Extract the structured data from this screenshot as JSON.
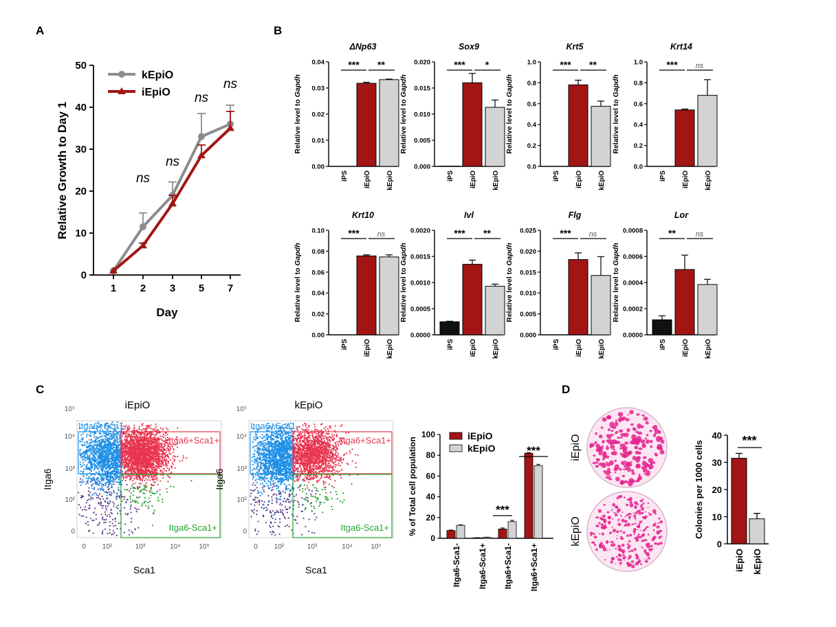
{
  "panel_labels": {
    "a": "A",
    "b": "B",
    "c": "C",
    "d": "D"
  },
  "colors": {
    "red": "#A31515",
    "gray_bar": "#D3D3D3",
    "gray_line": "#8C8C8C",
    "black_bar": "#111111",
    "pink": "#E4238E",
    "blue_gate": "#1E8FE6",
    "red_gate": "#E8354F",
    "green_gate": "#1FA52B",
    "purple": "#5B3C8A"
  },
  "chart_data": [
    {
      "id": "A",
      "type": "line",
      "xlabel": "Day",
      "ylabel": "Relative Growth to  Day 1",
      "categories": [
        "1",
        "2",
        "3",
        "5",
        "7"
      ],
      "ylim": [
        0,
        50
      ],
      "yticks": [
        "0",
        "10",
        "20",
        "30",
        "40",
        "50"
      ],
      "series": [
        {
          "name": "kEpiO",
          "values": [
            1,
            11.5,
            19,
            33,
            36
          ],
          "err": [
            0.2,
            3.3,
            3.2,
            5.5,
            4.5
          ]
        },
        {
          "name": "iEpiO",
          "values": [
            1,
            7,
            17,
            28.5,
            35
          ],
          "err": [
            0.2,
            0.6,
            2,
            2.5,
            4
          ]
        }
      ],
      "annotations": [
        "ns",
        "ns",
        "ns",
        "ns"
      ]
    },
    {
      "id": "B",
      "type": "bar",
      "ylabel": "Relative level to Gapdh",
      "categories": [
        "iPS",
        "iEpiO",
        "kEpiO"
      ],
      "panels": [
        {
          "title": "ΔNp63",
          "yticks": [
            "0.00",
            "0.01",
            "0.02",
            "0.03",
            "0.04"
          ],
          "ymax": 0.04,
          "values": [
            0,
            0.0318,
            0.0332
          ],
          "err": [
            0,
            0.0004,
            0.0002
          ],
          "sig": [
            "***",
            "**"
          ]
        },
        {
          "title": "Sox9",
          "yticks": [
            "0.000",
            "0.005",
            "0.010",
            "0.015",
            "0.020"
          ],
          "ymax": 0.02,
          "values": [
            5e-05,
            0.016,
            0.0113
          ],
          "err": [
            0,
            0.0018,
            0.0014
          ],
          "sig": [
            "***",
            "*"
          ]
        },
        {
          "title": "Krt5",
          "yticks": [
            "0.0",
            "0.2",
            "0.4",
            "0.6",
            "0.8",
            "1.0"
          ],
          "ymax": 1.0,
          "values": [
            0,
            0.78,
            0.575
          ],
          "err": [
            0,
            0.045,
            0.05
          ],
          "sig": [
            "***",
            "**"
          ]
        },
        {
          "title": "Krt14",
          "yticks": [
            "0.0",
            "0.2",
            "0.4",
            "0.6",
            "0.8",
            "1.0"
          ],
          "ymax": 1.0,
          "values": [
            0,
            0.54,
            0.68
          ],
          "err": [
            0,
            0.008,
            0.15
          ],
          "sig": [
            "***",
            "ns"
          ]
        },
        {
          "title": "Krt10",
          "yticks": [
            "0.00",
            "0.02",
            "0.04",
            "0.06",
            "0.08",
            "0.10"
          ],
          "ymax": 0.1,
          "values": [
            0,
            0.0755,
            0.0745
          ],
          "err": [
            0,
            0.001,
            0.002
          ],
          "sig": [
            "***",
            "ns"
          ]
        },
        {
          "title": "Ivl",
          "yticks": [
            "0.0000",
            "0.0005",
            "0.0010",
            "0.0015",
            "0.0020"
          ],
          "ymax": 0.002,
          "values": [
            0.00025,
            0.00135,
            0.00093
          ],
          "err": [
            1e-05,
            8e-05,
            4e-05
          ],
          "sig": [
            "***",
            "**"
          ]
        },
        {
          "title": "Flg",
          "yticks": [
            "0.000",
            "0.005",
            "0.010",
            "0.015",
            "0.020",
            "0.025"
          ],
          "ymax": 0.025,
          "values": [
            0,
            0.018,
            0.0142
          ],
          "err": [
            0,
            0.0016,
            0.0045
          ],
          "sig": [
            "***",
            "ns"
          ]
        },
        {
          "title": "Lor",
          "yticks": [
            "0.0000",
            "0.0002",
            "0.0004",
            "0.0006",
            "0.0008"
          ],
          "ymax": 0.0008,
          "values": [
            0.000115,
            0.0005,
            0.000385
          ],
          "err": [
            3e-05,
            0.00011,
            4e-05
          ],
          "sig": [
            "**",
            "ns"
          ]
        }
      ]
    },
    {
      "id": "C-flow",
      "type": "scatter",
      "plots": [
        {
          "title": "iEpiO",
          "n_blue": 1700,
          "n_red": 2600
        },
        {
          "title": "kEpiO",
          "n_blue": 1900,
          "n_red": 1700
        }
      ],
      "xlabel": "Sca1",
      "ylabel": "Itga6",
      "gates": [
        "Itga6+Sca1-",
        "Itga6+Sca1+",
        "Itga6-Sca1+"
      ],
      "xticks": [
        "0",
        "10²",
        "10³",
        "10⁴",
        "10⁵"
      ],
      "yticks": [
        "0",
        "10²",
        "10³",
        "10⁴",
        "10⁵"
      ]
    },
    {
      "id": "C-bar",
      "type": "bar",
      "ylabel": "% of Total cell population",
      "ylim": [
        0,
        100
      ],
      "yticks": [
        "0",
        "20",
        "40",
        "60",
        "80",
        "100"
      ],
      "categories": [
        "Itga6-Sca1-",
        "Itga6-Sca1+",
        "Itga6+Sca1-",
        "Itga6+Sca1+"
      ],
      "series": [
        {
          "name": "iEpiO",
          "values": [
            7.5,
            0.5,
            9,
            82
          ],
          "err": [
            0.5,
            0.1,
            1,
            0.5
          ]
        },
        {
          "name": "kEpiO",
          "values": [
            12.5,
            1,
            16,
            70
          ],
          "err": [
            0.5,
            0.1,
            1.3,
            1.3
          ]
        }
      ],
      "sig": [
        "***",
        "***"
      ]
    },
    {
      "id": "D",
      "type": "bar",
      "ylabel": "Colonies per 1000 cells",
      "ylim": [
        0,
        40
      ],
      "yticks": [
        "0",
        "10",
        "20",
        "30",
        "40"
      ],
      "categories": [
        "iEpiO",
        "kEpiO"
      ],
      "values": [
        31.5,
        9.2
      ],
      "err": [
        1.8,
        2
      ],
      "sig": "***",
      "image_labels": [
        "iEpiO",
        "kEpiO"
      ]
    }
  ]
}
